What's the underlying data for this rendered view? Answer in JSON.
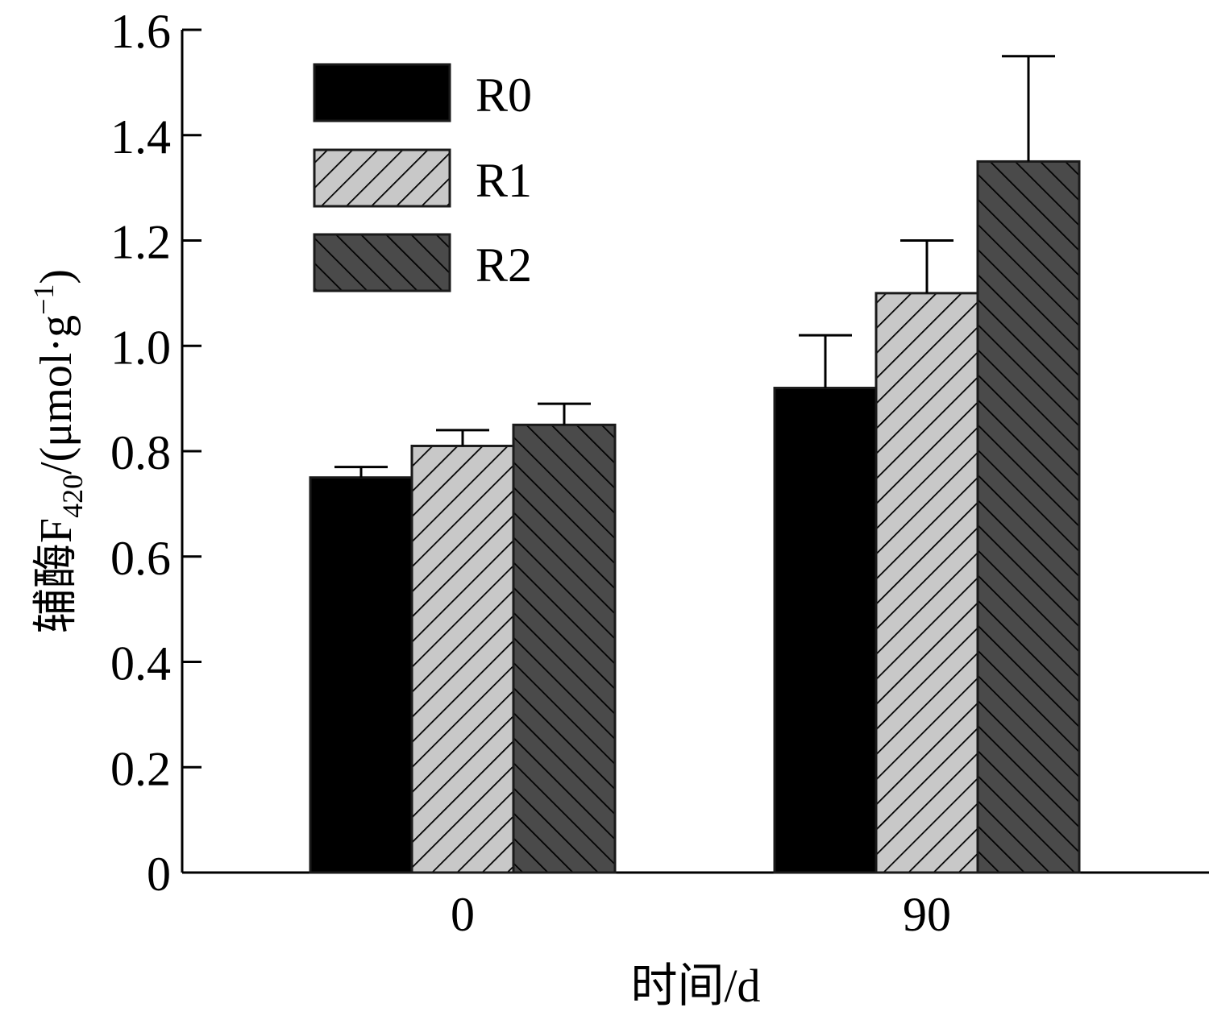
{
  "chart_data": {
    "type": "bar",
    "categories": [
      "0",
      "90"
    ],
    "series": [
      {
        "name": "R0",
        "values": [
          0.75,
          0.92
        ],
        "errors": [
          0.02,
          0.1
        ],
        "fill": "#000000",
        "pattern": "solid"
      },
      {
        "name": "R1",
        "values": [
          0.81,
          1.1
        ],
        "errors": [
          0.03,
          0.1
        ],
        "fill": "#c8c8c8",
        "pattern": "hatch-forward"
      },
      {
        "name": "R2",
        "values": [
          0.85,
          1.35
        ],
        "errors": [
          0.04,
          0.2
        ],
        "fill": "#4a4a4a",
        "pattern": "hatch-backward"
      }
    ],
    "xlabel": "时间/d",
    "ylabel": {
      "main": "辅酶F",
      "subscript": "420",
      "unit_prefix": "/(μmol·g",
      "superscript": "−1",
      "unit_suffix": ")"
    },
    "ylim": [
      0,
      1.6
    ],
    "yticks": [
      "0",
      "0.2",
      "0.4",
      "0.6",
      "0.8",
      "1.0",
      "1.2",
      "1.4",
      "1.6"
    ],
    "grid": false,
    "legend_position": "top-left"
  }
}
